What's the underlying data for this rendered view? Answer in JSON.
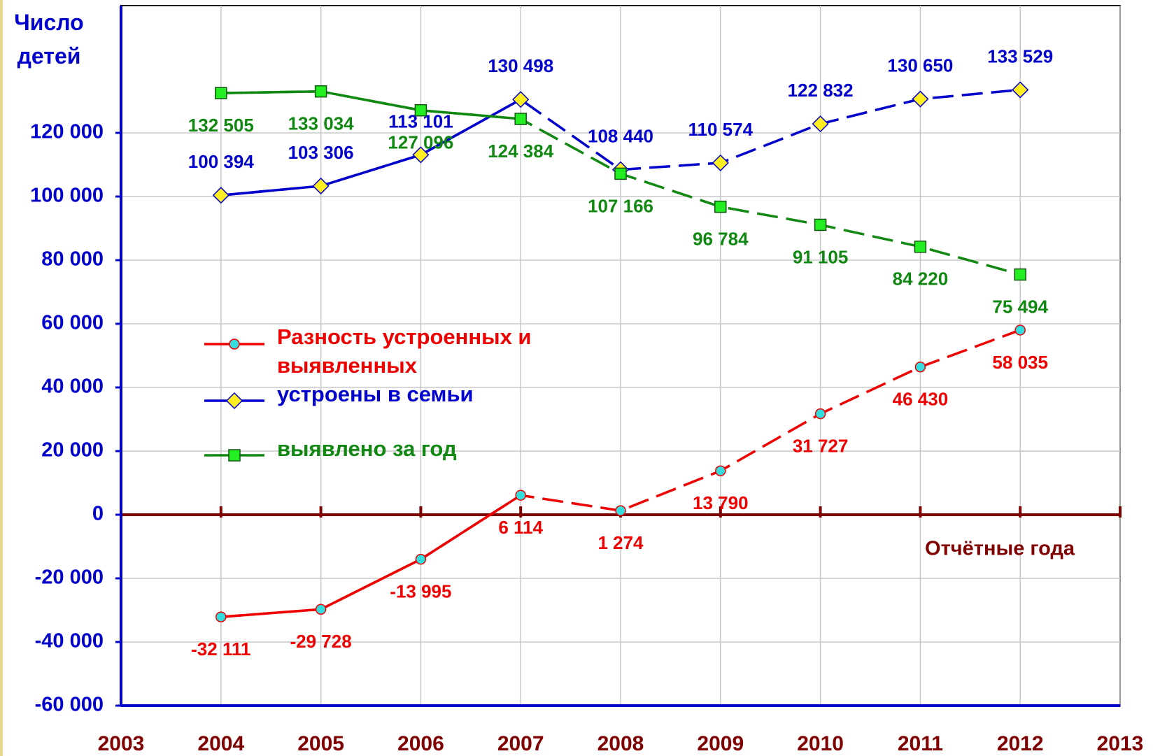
{
  "chart_data": {
    "type": "line",
    "y_label": "Число детей",
    "x_label": "Отчётные года",
    "x": [
      2004,
      2005,
      2006,
      2007,
      2008,
      2009,
      2010,
      2011,
      2012
    ],
    "series": [
      {
        "name": "Разность устроенных и выявленных",
        "color": "#ee0000",
        "marker": "circle",
        "marker_color": "#33dddd",
        "values": [
          -32111,
          -29728,
          -13995,
          6114,
          1274,
          13790,
          31727,
          46430,
          58035
        ],
        "value_labels": [
          "-32 111",
          "-29 728",
          "-13 995",
          "6 114",
          "1 274",
          "13 790",
          "31 727",
          "46 430",
          "58 035"
        ]
      },
      {
        "name": "устроены в семьи",
        "color": "#0000cc",
        "marker": "diamond",
        "marker_color": "#ffee22",
        "values": [
          100394,
          103306,
          113101,
          130498,
          108440,
          110574,
          122832,
          130650,
          133529
        ],
        "value_labels": [
          "100 394",
          "103 306",
          "113 101",
          "130 498",
          "108 440",
          "110 574",
          "122 832",
          "130 650",
          "133 529"
        ]
      },
      {
        "name": "выявлено за год",
        "color": "#118811",
        "marker": "square",
        "marker_color": "#22ee22",
        "values": [
          132505,
          133034,
          127096,
          124384,
          107166,
          96784,
          91105,
          84220,
          75494
        ],
        "value_labels": [
          "132 505",
          "133 034",
          "127 096",
          "124 384",
          "107 166",
          "96 784",
          "91 105",
          "84 220",
          "75 494"
        ]
      }
    ],
    "xlim": [
      2003,
      2013
    ],
    "xticks": [
      2003,
      2004,
      2005,
      2006,
      2007,
      2008,
      2009,
      2010,
      2011,
      2012,
      2013
    ],
    "ylim": [
      -60000,
      160000
    ],
    "yticks": [
      {
        "value": -60000,
        "label": "-60 000"
      },
      {
        "value": -40000,
        "label": "-40 000"
      },
      {
        "value": -20000,
        "label": "-20 000"
      },
      0,
      {
        "value": 20000,
        "label": "20 000"
      },
      {
        "value": 40000,
        "label": "40 000"
      },
      {
        "value": 60000,
        "label": "60 000"
      },
      {
        "value": 80000,
        "label": "80 000"
      },
      {
        "value": 100000,
        "label": "100 000"
      },
      {
        "value": 120000,
        "label": "120 000"
      }
    ],
    "grid": true,
    "legend": "center-left"
  }
}
